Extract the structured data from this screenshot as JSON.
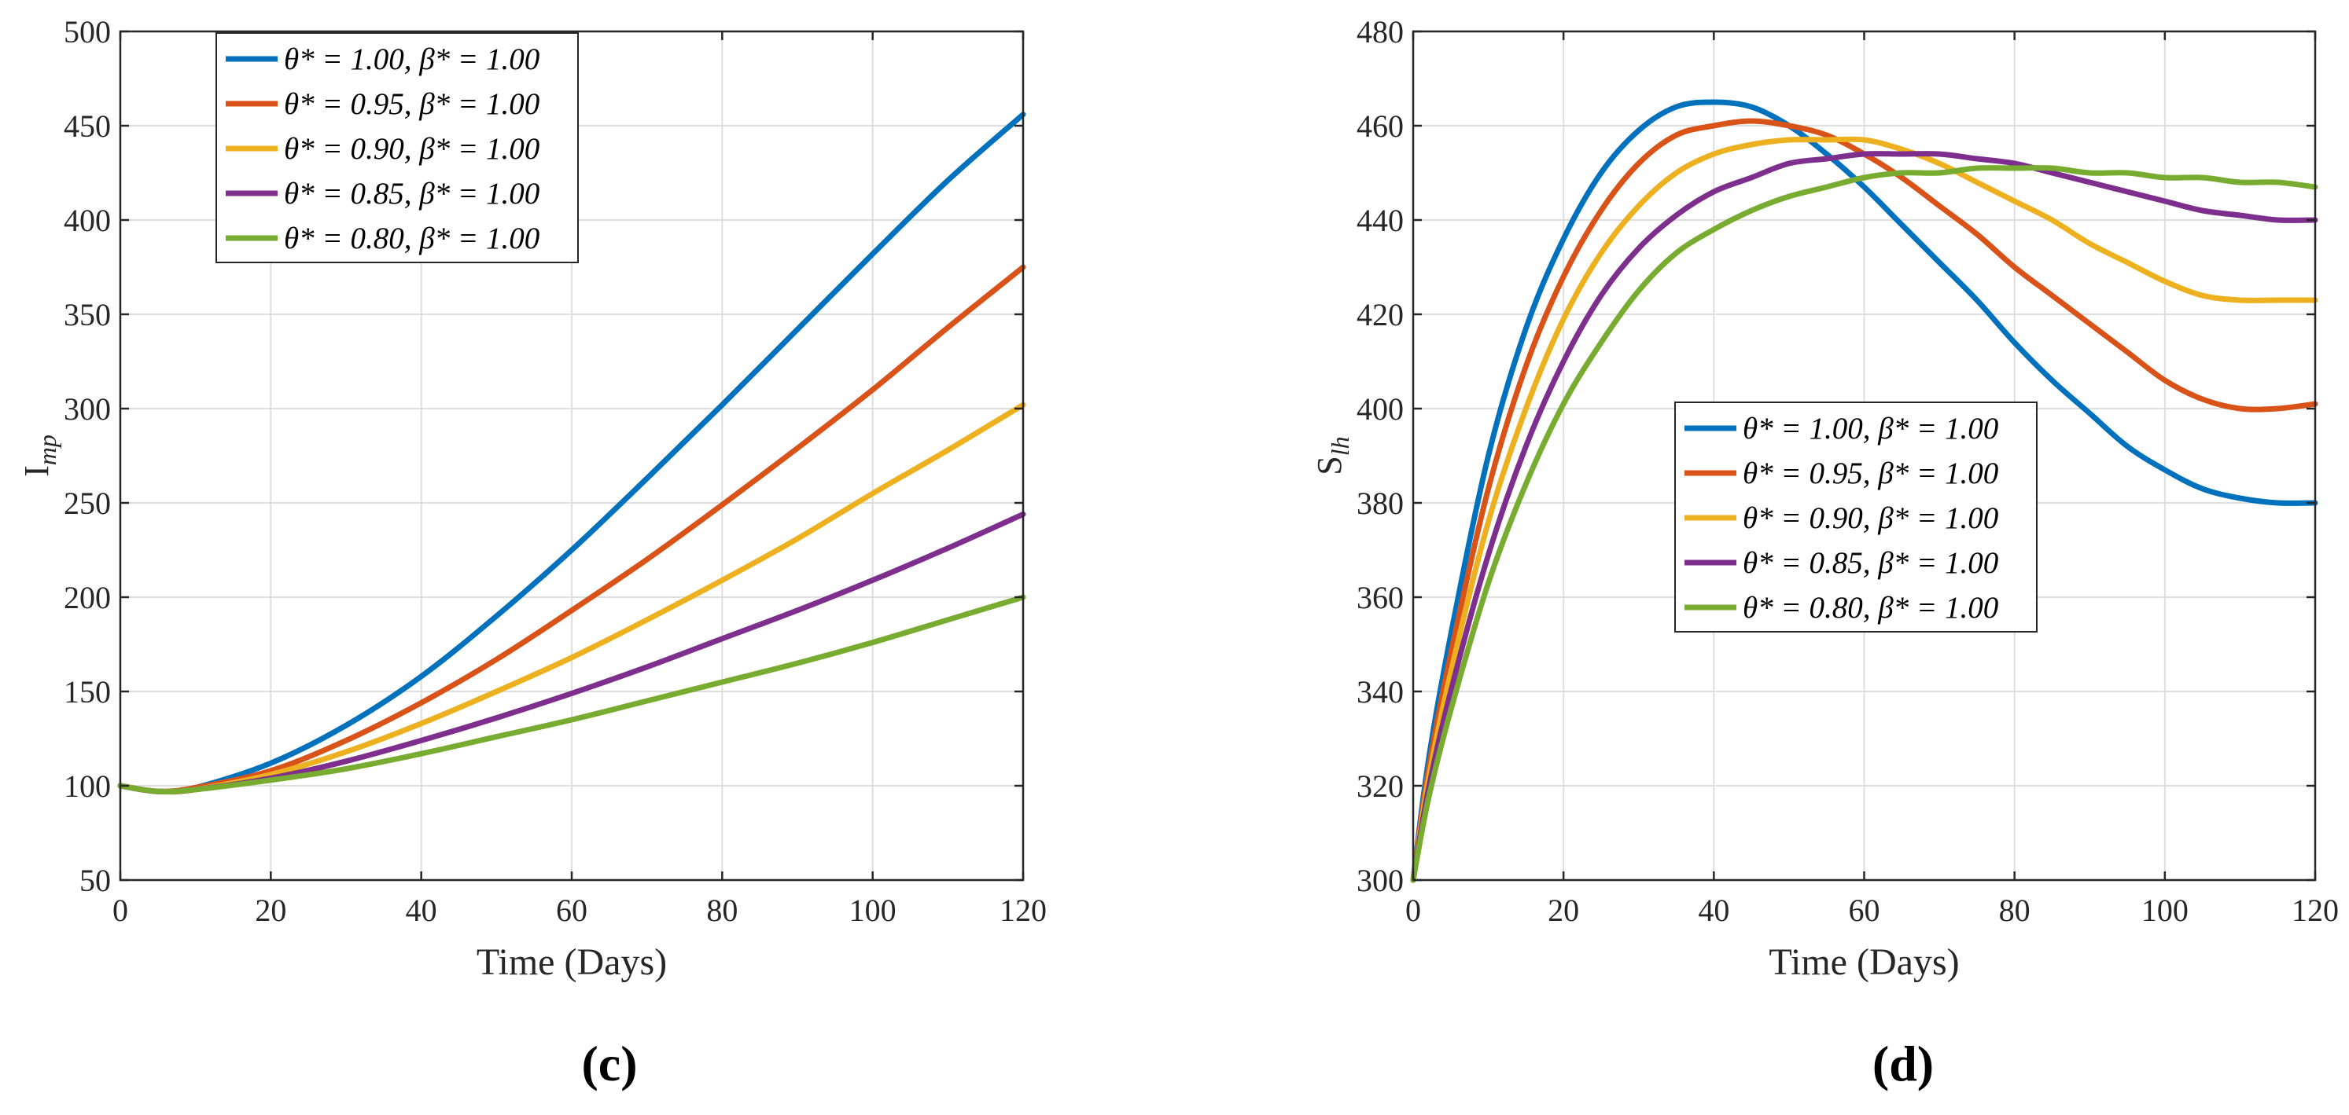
{
  "chart_data": [
    {
      "type": "line",
      "panel_label": "(c)",
      "xlabel": "Time (Days)",
      "ylabel": "I_mp",
      "ylabel_main": "I",
      "ylabel_sub": "mp",
      "xlim": [
        0,
        120
      ],
      "ylim": [
        50,
        500
      ],
      "xticks": [
        "0",
        "20",
        "40",
        "60",
        "80",
        "100",
        "120"
      ],
      "yticks": [
        "50",
        "100",
        "150",
        "200",
        "250",
        "300",
        "350",
        "400",
        "450",
        "500"
      ],
      "grid": true,
      "legend_location": "top-left",
      "x": [
        0,
        5,
        10,
        20,
        30,
        40,
        50,
        60,
        70,
        80,
        90,
        100,
        110,
        120
      ],
      "series": [
        {
          "name": "θ* = 1.00, β* = 1.00",
          "color": "#0072BD",
          "values": [
            100,
            97,
            99,
            112,
            132,
            158,
            190,
            225,
            263,
            302,
            342,
            382,
            421,
            456
          ]
        },
        {
          "name": "θ* = 0.95, β* = 1.00",
          "color": "#D95319",
          "values": [
            100,
            97,
            99,
            108,
            124,
            144,
            167,
            193,
            220,
            249,
            279,
            310,
            343,
            375
          ]
        },
        {
          "name": "θ* = 0.90, β* = 1.00",
          "color": "#EDB120",
          "values": [
            100,
            97,
            98,
            106,
            118,
            133,
            150,
            168,
            188,
            209,
            231,
            255,
            278,
            302
          ]
        },
        {
          "name": "θ* = 0.85, β* = 1.00",
          "color": "#7E2F8E",
          "values": [
            100,
            97,
            98,
            104,
            113,
            124,
            136,
            149,
            163,
            178,
            193,
            209,
            226,
            244
          ]
        },
        {
          "name": "θ* = 0.80, β* = 1.00",
          "color": "#77AC30",
          "values": [
            100,
            97,
            98,
            103,
            109,
            117,
            126,
            135,
            145,
            155,
            165,
            176,
            188,
            200
          ]
        }
      ]
    },
    {
      "type": "line",
      "panel_label": "(d)",
      "xlabel": "Time (Days)",
      "ylabel": "S_lh",
      "ylabel_main": "S",
      "ylabel_sub": "lh",
      "xlim": [
        0,
        120
      ],
      "ylim": [
        300,
        480
      ],
      "xticks": [
        "0",
        "20",
        "40",
        "60",
        "80",
        "100",
        "120"
      ],
      "yticks": [
        "300",
        "320",
        "340",
        "360",
        "380",
        "400",
        "420",
        "440",
        "460",
        "480"
      ],
      "grid": true,
      "legend_location": "center",
      "x": [
        0,
        2,
        5,
        10,
        15,
        20,
        25,
        30,
        35,
        40,
        45,
        50,
        55,
        60,
        65,
        70,
        75,
        80,
        85,
        90,
        95,
        100,
        105,
        110,
        115,
        120
      ],
      "series": [
        {
          "name": "θ* = 1.00, β* = 1.00",
          "color": "#0072BD",
          "values": [
            300,
            325,
            352,
            390,
            417,
            436,
            450,
            459,
            464,
            465,
            464,
            460,
            454,
            447,
            439,
            431,
            423,
            414,
            406,
            399,
            392,
            387,
            383,
            381,
            380,
            380
          ]
        },
        {
          "name": "θ* = 0.95, β* = 1.00",
          "color": "#D95319",
          "values": [
            300,
            323,
            348,
            383,
            409,
            428,
            442,
            452,
            458,
            460,
            461,
            460,
            458,
            454,
            449,
            443,
            437,
            430,
            424,
            418,
            412,
            406,
            402,
            400,
            400,
            401
          ]
        },
        {
          "name": "θ* = 0.90, β* = 1.00",
          "color": "#EDB120",
          "values": [
            300,
            321,
            344,
            376,
            400,
            419,
            433,
            443,
            450,
            454,
            456,
            457,
            457,
            457,
            455,
            452,
            448,
            444,
            440,
            435,
            431,
            427,
            424,
            423,
            423,
            423
          ]
        },
        {
          "name": "θ* = 0.85, β* = 1.00",
          "color": "#7E2F8E",
          "values": [
            300,
            319,
            340,
            369,
            392,
            410,
            424,
            434,
            441,
            446,
            449,
            452,
            453,
            454,
            454,
            454,
            453,
            452,
            450,
            448,
            446,
            444,
            442,
            441,
            440,
            440
          ]
        },
        {
          "name": "θ* = 0.80, β* = 1.00",
          "color": "#77AC30",
          "values": [
            300,
            317,
            336,
            363,
            384,
            401,
            414,
            425,
            433,
            438,
            442,
            445,
            447,
            449,
            450,
            450,
            451,
            451,
            451,
            450,
            450,
            449,
            449,
            448,
            448,
            447
          ]
        }
      ]
    }
  ]
}
